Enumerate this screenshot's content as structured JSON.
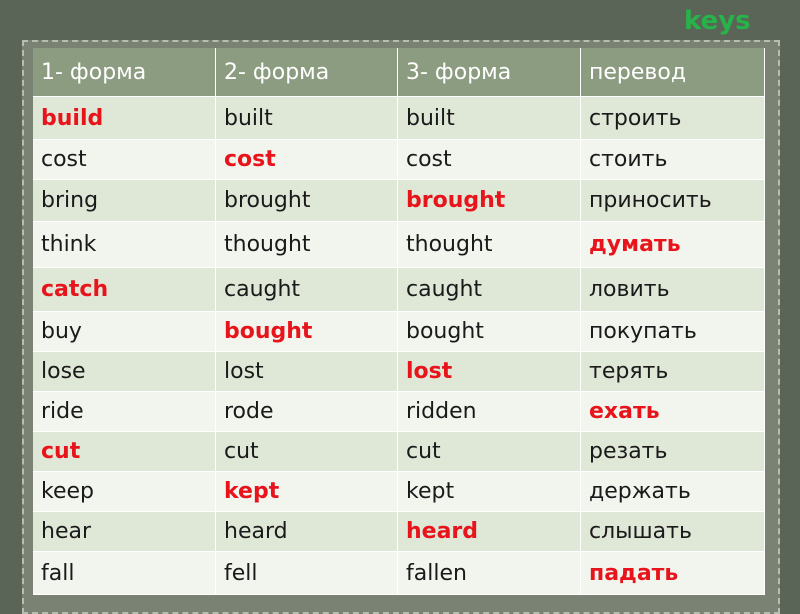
{
  "title": "keys",
  "table": {
    "header": [
      "1- форма",
      "2- форма",
      "3- форма",
      "перевод"
    ],
    "header_color": "#8c9c80",
    "row_colors": [
      "#dfe7d7",
      "#f2f5ee"
    ],
    "highlight_color": "#e8141c",
    "text_color": "#1a1a1a",
    "rows": [
      {
        "cells": [
          "build",
          "built",
          "built",
          "строить"
        ],
        "highlight": 0
      },
      {
        "cells": [
          "cost",
          "cost",
          "cost",
          "стоить"
        ],
        "highlight": 1
      },
      {
        "cells": [
          "bring",
          "brought",
          "brought",
          "приносить"
        ],
        "highlight": 2
      },
      {
        "cells": [
          "think",
          "thought",
          "thought",
          "думать"
        ],
        "highlight": 3
      },
      {
        "cells": [
          "catch",
          "caught",
          "caught",
          "ловить"
        ],
        "highlight": 0
      },
      {
        "cells": [
          "buy",
          "bought",
          "bought",
          "покупать"
        ],
        "highlight": 1
      },
      {
        "cells": [
          "lose",
          "lost",
          "lost",
          "терять"
        ],
        "highlight": 2
      },
      {
        "cells": [
          "ride",
          "rode",
          "ridden",
          "ехать"
        ],
        "highlight": 3
      },
      {
        "cells": [
          "cut",
          "cut",
          "cut",
          "резать"
        ],
        "highlight": 0
      },
      {
        "cells": [
          "keep",
          "kept",
          "kept",
          "держать"
        ],
        "highlight": 1
      },
      {
        "cells": [
          "hear",
          "heard",
          "heard",
          "слышать"
        ],
        "highlight": 2
      },
      {
        "cells": [
          "fall",
          "fell",
          "fallen",
          "падать"
        ],
        "highlight": 3
      }
    ]
  }
}
